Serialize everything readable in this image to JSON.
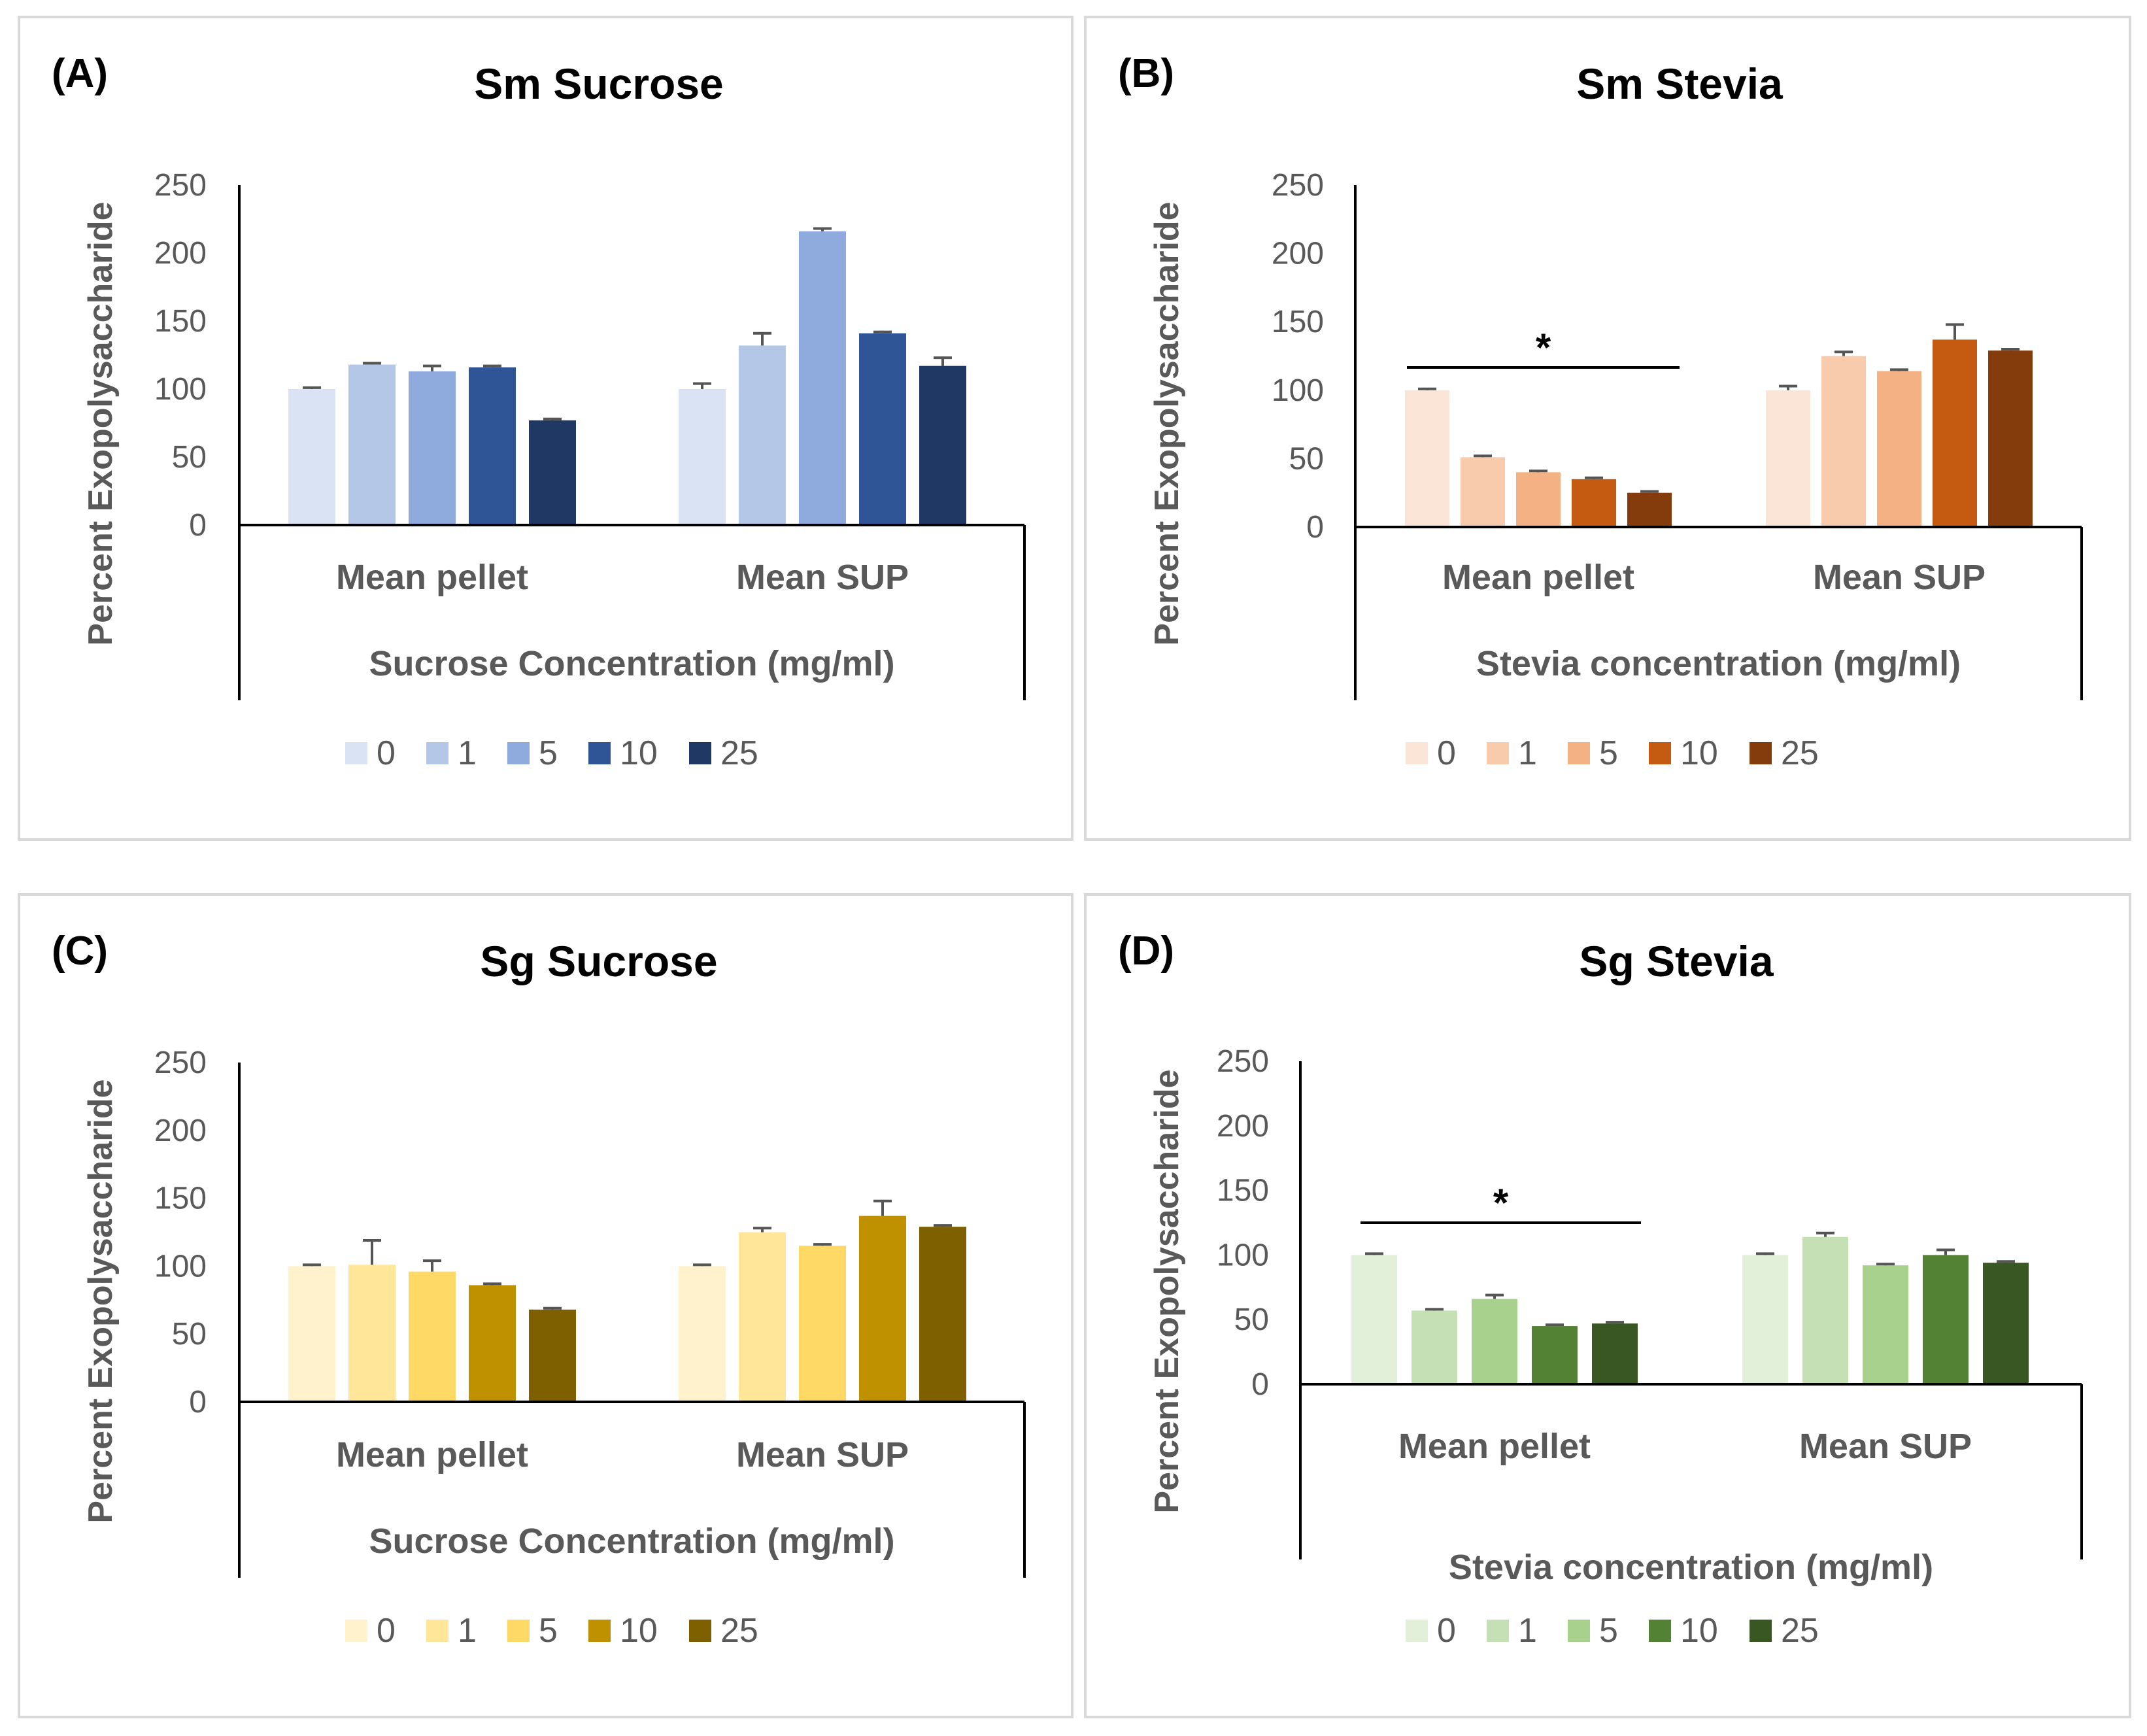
{
  "chart_data": [
    {
      "type": "bar",
      "panel_label": "(A)",
      "title": "Sm Sucrose",
      "xlabel": "Sucrose Concentration (mg/ml)",
      "ylabel": "Percent Exopolysaccharide",
      "ylim": [
        0,
        250
      ],
      "yticks": [
        0,
        50,
        100,
        150,
        200,
        250
      ],
      "grid": false,
      "legend_position": "bottom",
      "categories": [
        "Mean pellet",
        "Mean SUP"
      ],
      "series": [
        {
          "name": "0",
          "color": "#dae3f3",
          "values": [
            100,
            100
          ],
          "errors": [
            1,
            4
          ]
        },
        {
          "name": "1",
          "color": "#b4c7e7",
          "values": [
            118,
            132
          ],
          "errors": [
            1,
            9
          ]
        },
        {
          "name": "5",
          "color": "#8faadc",
          "values": [
            113,
            216
          ],
          "errors": [
            4,
            2
          ]
        },
        {
          "name": "10",
          "color": "#2f5597",
          "values": [
            116,
            141
          ],
          "errors": [
            1,
            1
          ]
        },
        {
          "name": "25",
          "color": "#203864",
          "values": [
            77,
            117
          ],
          "errors": [
            1,
            6
          ]
        }
      ],
      "annotations": []
    },
    {
      "type": "bar",
      "panel_label": "(B)",
      "title": "Sm Stevia",
      "xlabel": "Stevia concentration (mg/ml)",
      "ylabel": "Percent Exopolysaccharide",
      "ylim": [
        0,
        250
      ],
      "yticks": [
        0,
        50,
        100,
        150,
        200,
        250
      ],
      "grid": false,
      "legend_position": "bottom",
      "categories": [
        "Mean pellet",
        "Mean SUP"
      ],
      "series": [
        {
          "name": "0",
          "color": "#fbe5d6",
          "values": [
            100,
            100
          ],
          "errors": [
            1,
            3
          ]
        },
        {
          "name": "1",
          "color": "#f8cbad",
          "values": [
            51,
            125
          ],
          "errors": [
            1,
            3
          ]
        },
        {
          "name": "5",
          "color": "#f4b183",
          "values": [
            40,
            114
          ],
          "errors": [
            1,
            1
          ]
        },
        {
          "name": "10",
          "color": "#c55a11",
          "values": [
            35,
            137
          ],
          "errors": [
            1,
            11
          ]
        },
        {
          "name": "25",
          "color": "#843c0c",
          "values": [
            25,
            129
          ],
          "errors": [
            1,
            1
          ]
        }
      ],
      "annotations": [
        {
          "text": "*",
          "category": "Mean pellet"
        }
      ]
    },
    {
      "type": "bar",
      "panel_label": "(C)",
      "title": "Sg Sucrose",
      "xlabel": "Sucrose Concentration (mg/ml)",
      "ylabel": "Percent Exopolysaccharide",
      "ylim": [
        0,
        250
      ],
      "yticks": [
        0,
        50,
        100,
        150,
        200,
        250
      ],
      "grid": false,
      "legend_position": "bottom",
      "categories": [
        "Mean pellet",
        "Mean SUP"
      ],
      "series": [
        {
          "name": "0",
          "color": "#fff2cc",
          "values": [
            100,
            100
          ],
          "errors": [
            1,
            1
          ]
        },
        {
          "name": "1",
          "color": "#ffe699",
          "values": [
            101,
            125
          ],
          "errors": [
            18,
            3
          ]
        },
        {
          "name": "5",
          "color": "#ffd966",
          "values": [
            96,
            115
          ],
          "errors": [
            8,
            1
          ]
        },
        {
          "name": "10",
          "color": "#bf9000",
          "values": [
            86,
            137
          ],
          "errors": [
            1,
            11
          ]
        },
        {
          "name": "25",
          "color": "#7f6000",
          "values": [
            68,
            129
          ],
          "errors": [
            1,
            1
          ]
        }
      ],
      "annotations": []
    },
    {
      "type": "bar",
      "panel_label": "(D)",
      "title": "Sg Stevia",
      "xlabel": "Stevia concentration (mg/ml)",
      "ylabel": "Percent Exopolysaccharide",
      "ylim": [
        0,
        250
      ],
      "yticks": [
        0,
        50,
        100,
        150,
        200,
        250
      ],
      "grid": false,
      "legend_position": "bottom",
      "categories": [
        "Mean pellet",
        "Mean SUP"
      ],
      "series": [
        {
          "name": "0",
          "color": "#e2f0d9",
          "values": [
            100,
            100
          ],
          "errors": [
            1,
            1
          ]
        },
        {
          "name": "1",
          "color": "#c5e0b4",
          "values": [
            57,
            114
          ],
          "errors": [
            1,
            3
          ]
        },
        {
          "name": "5",
          "color": "#a9d18e",
          "values": [
            66,
            92
          ],
          "errors": [
            3,
            1
          ]
        },
        {
          "name": "10",
          "color": "#548235",
          "values": [
            45,
            100
          ],
          "errors": [
            1,
            4
          ]
        },
        {
          "name": "25",
          "color": "#385723",
          "values": [
            47,
            94
          ],
          "errors": [
            1,
            1
          ]
        }
      ],
      "annotations": [
        {
          "text": "*",
          "category": "Mean pellet"
        }
      ]
    }
  ]
}
